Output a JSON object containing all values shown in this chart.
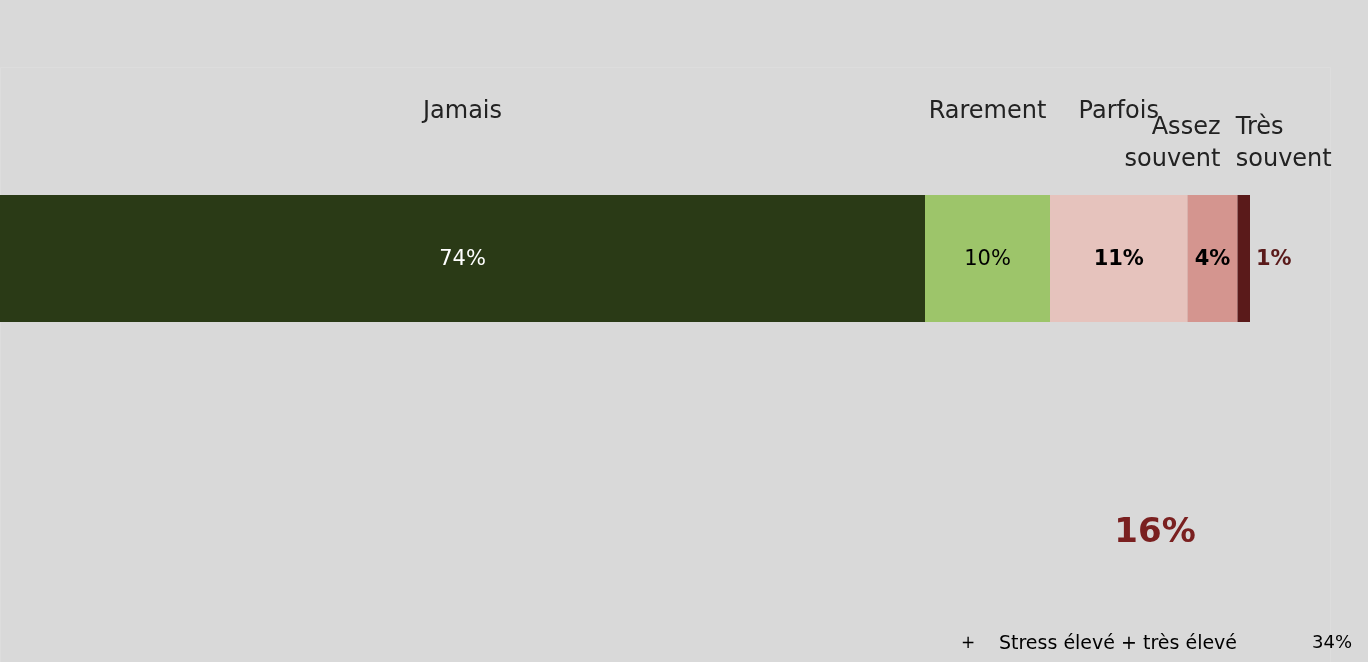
{
  "chart_data": {
    "type": "bar",
    "orientation": "horizontal",
    "stacked": true,
    "data_labels": true,
    "categories": [
      null
    ],
    "series": [
      {
        "name": "Jamais",
        "color": "#2a3a16",
        "values": [
          74
        ],
        "value_labels": [
          "74%"
        ]
      },
      {
        "name": "Rarement",
        "color": "#9dc56a",
        "values": [
          10
        ],
        "value_labels": [
          "10%"
        ]
      },
      {
        "name": "Parfois",
        "color": "#e6c3bd",
        "values": [
          11
        ],
        "value_labels": [
          "11%"
        ]
      },
      {
        "name": "Assez souvent",
        "color": "#d4958f",
        "values": [
          4
        ],
        "value_labels": [
          "4%"
        ]
      },
      {
        "name": "Très souvent",
        "color": "#5a1a1a",
        "values": [
          1
        ],
        "value_labels": [
          "1%"
        ]
      }
    ],
    "annotations": [
      "16%",
      "+",
      "Stress élevé  +  très élevé",
      "34%"
    ]
  }
}
